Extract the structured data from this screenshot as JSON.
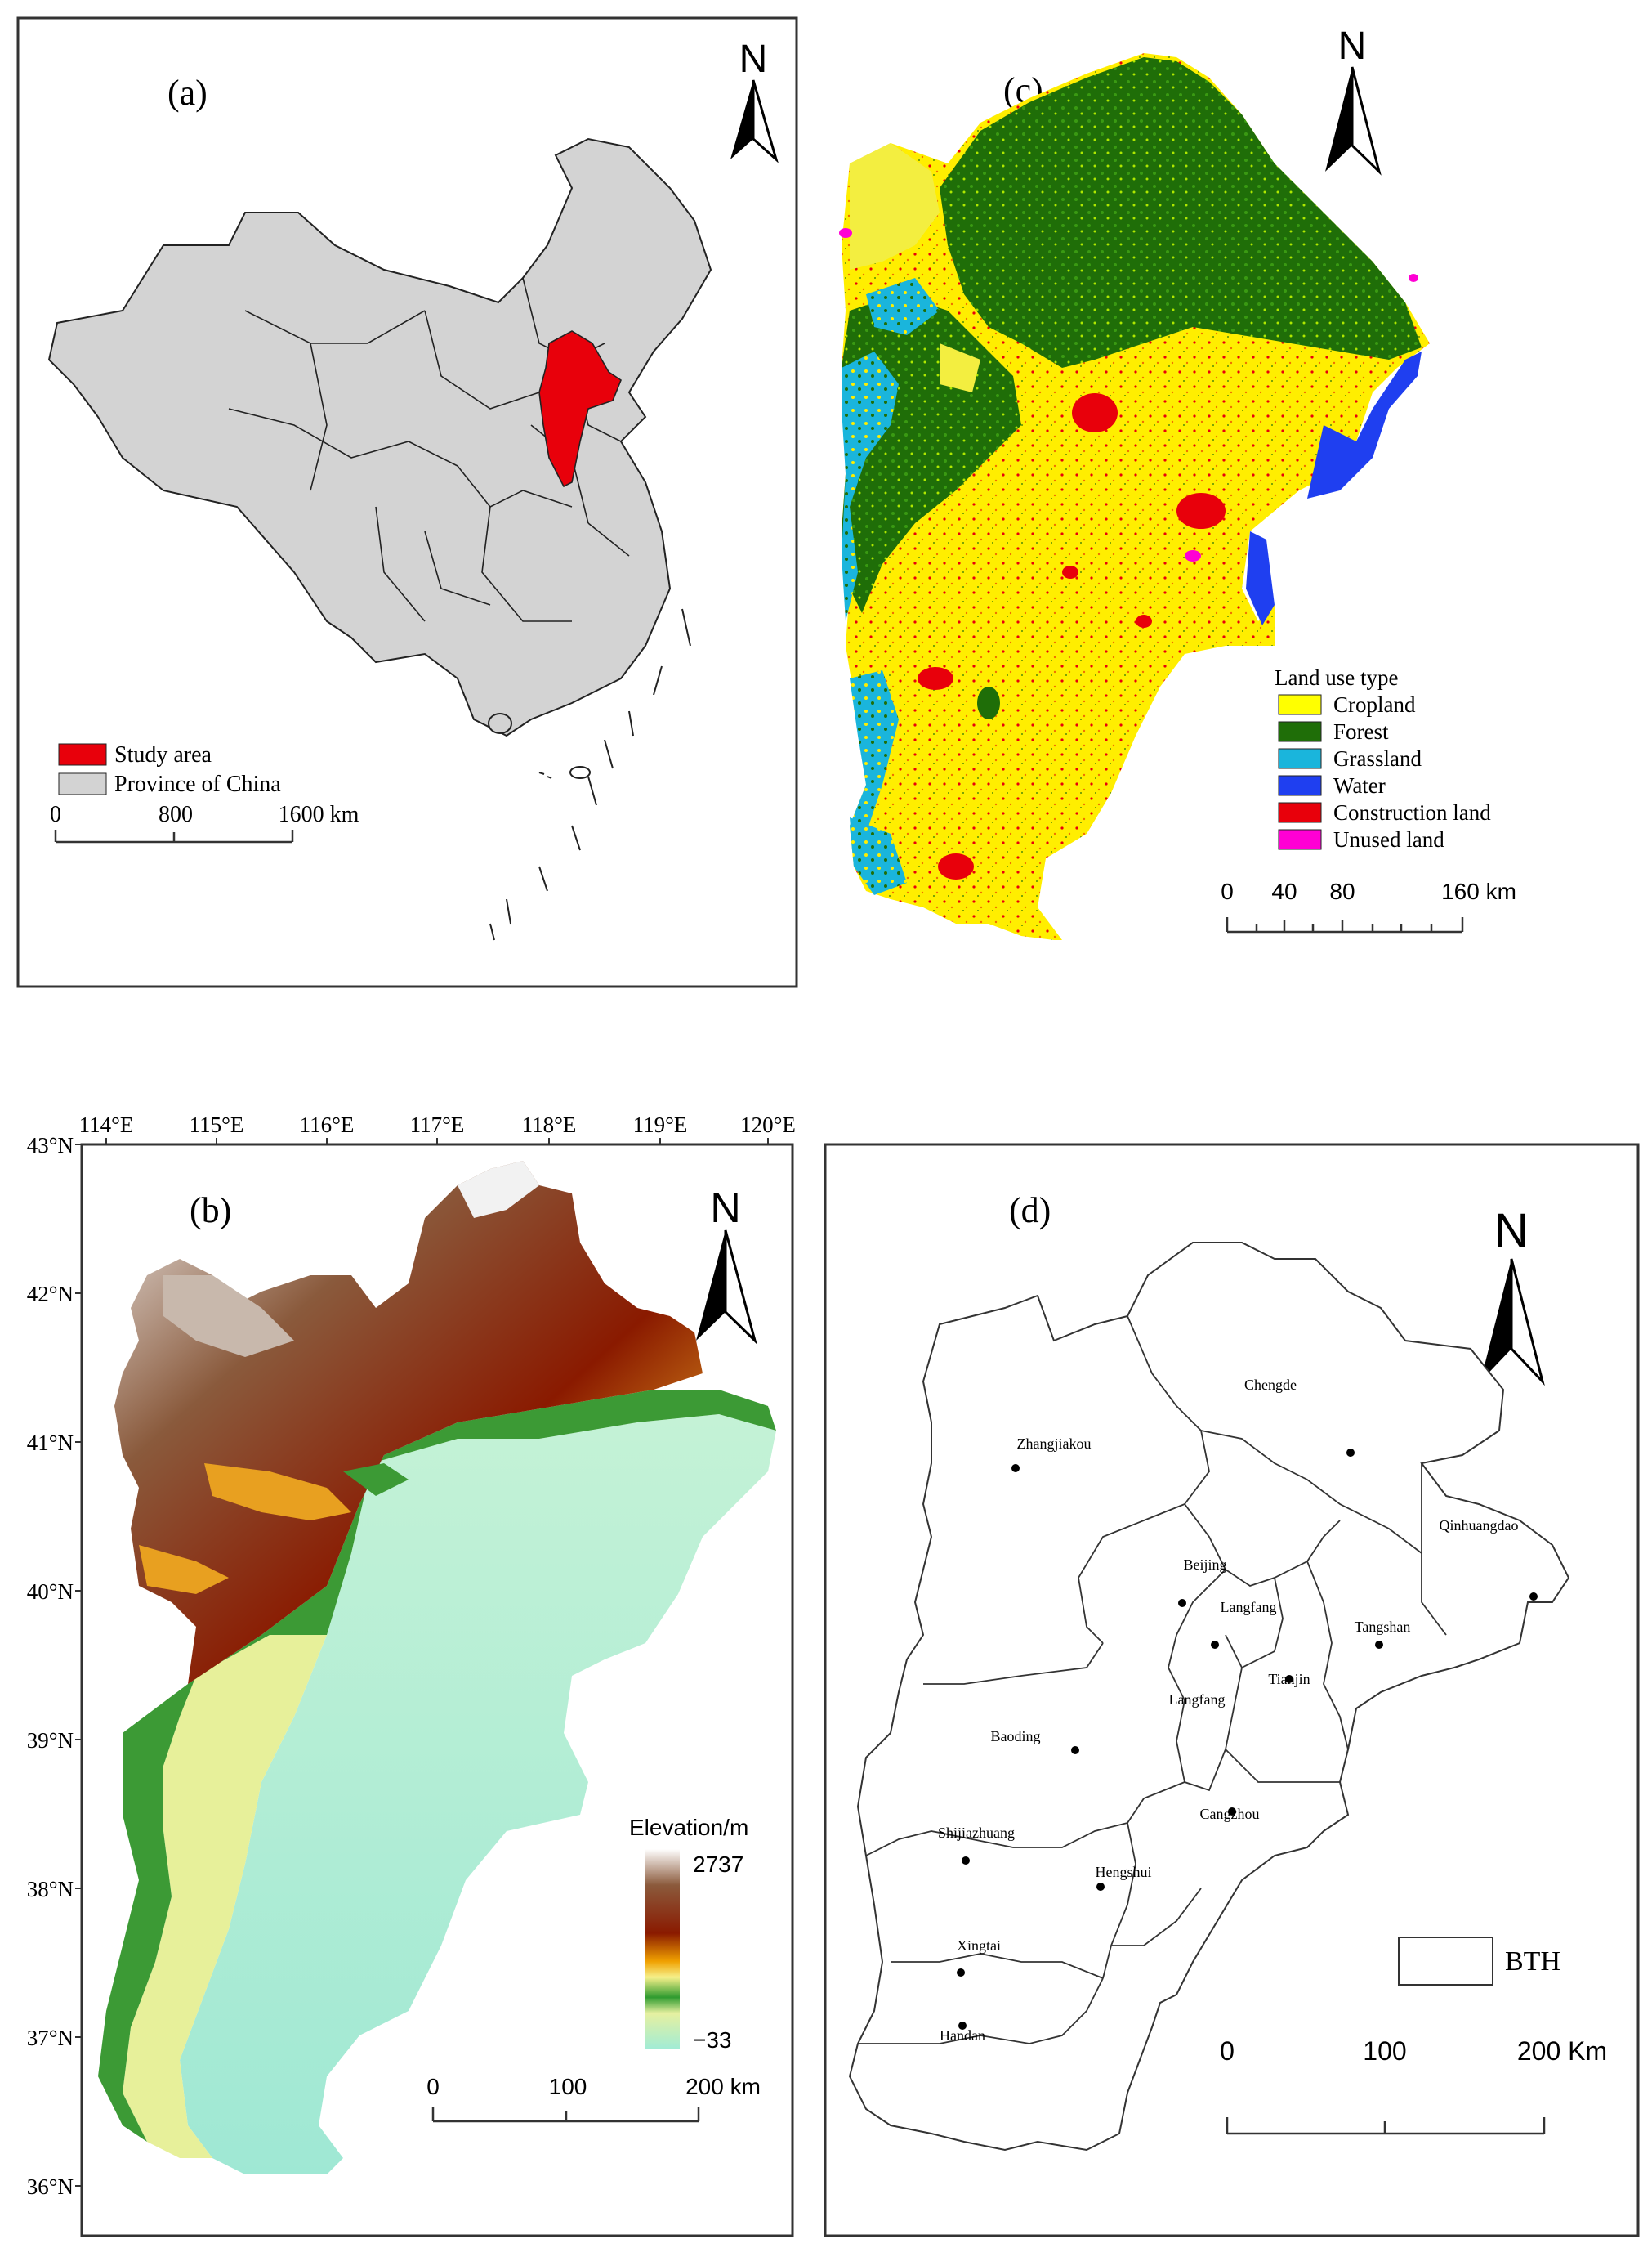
{
  "panel_a": {
    "label": "(a)",
    "north": "N",
    "legend": [
      {
        "label": "Study area",
        "color": "#e8000b"
      },
      {
        "label": "Province of China",
        "color": "#d3d3d3"
      }
    ],
    "scale_ticks": [
      "0",
      "800",
      "1600 km"
    ]
  },
  "panel_b": {
    "label": "(b)",
    "north": "N",
    "lon_ticks": [
      "114°E",
      "115°E",
      "116°E",
      "117°E",
      "118°E",
      "119°E",
      "120°E"
    ],
    "lat_ticks": [
      "43°N",
      "42°N",
      "41°N",
      "40°N",
      "39°N",
      "38°N",
      "37°N",
      "36°N"
    ],
    "legend_title": "Elevation/m",
    "elev_max": "2737",
    "elev_min": "−33",
    "scale_ticks": [
      "0",
      "100",
      "200 km"
    ]
  },
  "panel_c": {
    "label": "(c)",
    "north": "N",
    "legend_title": "Land use  type",
    "legend": [
      {
        "label": "Cropland",
        "color": "#ffff00"
      },
      {
        "label": "Forest",
        "color": "#1f6e08"
      },
      {
        "label": "Grassland",
        "color": "#1ab5dc"
      },
      {
        "label": "Water",
        "color": "#1f3ff0"
      },
      {
        "label": "Construction land",
        "color": "#e8000b"
      },
      {
        "label": "Unused land",
        "color": "#ff00d4"
      }
    ],
    "scale_ticks": [
      "0",
      "40",
      "80",
      "160 km"
    ]
  },
  "panel_d": {
    "label": "(d)",
    "north": "N",
    "cities": [
      "Chengde",
      "Zhangjiakou",
      "Qinhuangdao",
      "Beijing",
      "Langfang",
      "Tangshan",
      "Tianjin",
      "Langfang",
      "Baoding",
      "Cangzhou",
      "Shijiazhuang",
      "Hengshui",
      "Xingtai",
      "Handan"
    ],
    "legend_label": "BTH",
    "scale_ticks": [
      "0",
      "100",
      "200 Km"
    ]
  }
}
